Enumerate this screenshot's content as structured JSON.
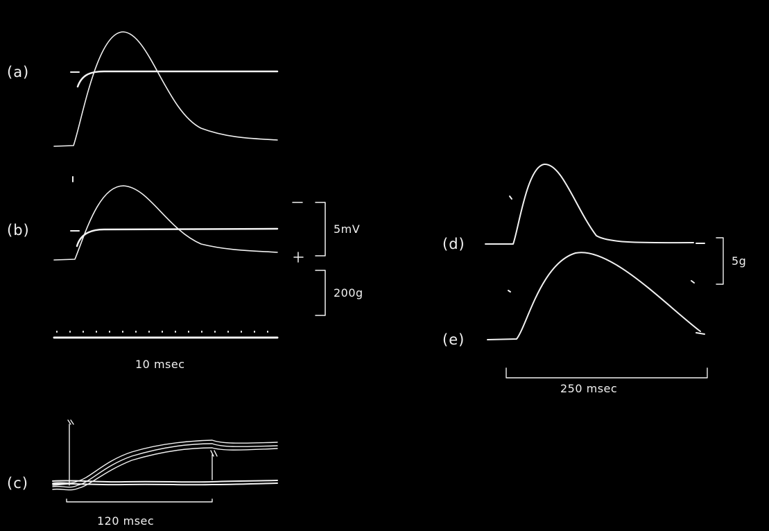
{
  "panels": {
    "a": "(a)",
    "b": "(b)",
    "c": "(c)",
    "d": "(d)",
    "e": "(e)"
  },
  "scale_bars": {
    "voltage": "5mV",
    "force_ab": "200g",
    "time_ab": "10 msec",
    "time_c": "120 msec",
    "time_de": "250 msec",
    "force_de": "5g"
  },
  "polarity": {
    "minus": "−",
    "plus": "+"
  },
  "colors": {
    "background": "#000000",
    "trace": "#f2f2f2"
  }
}
